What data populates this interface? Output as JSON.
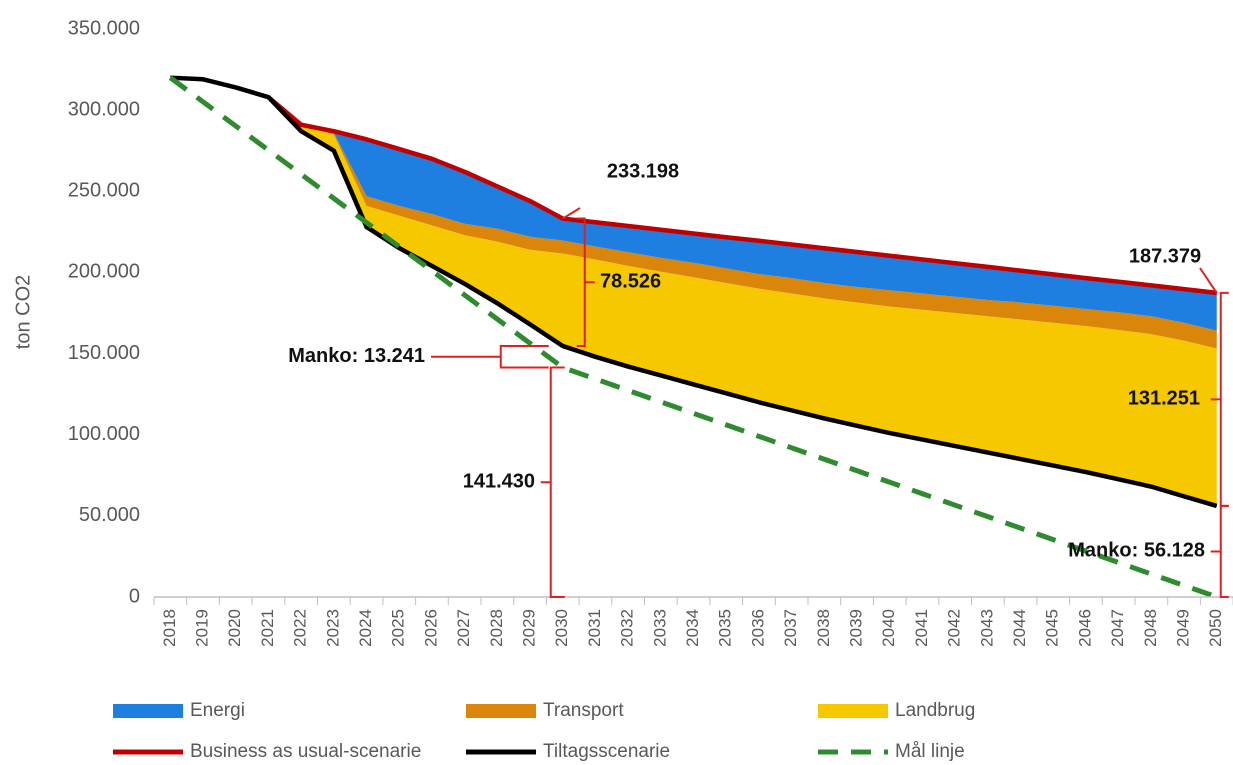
{
  "chart_data": {
    "type": "area",
    "y_label": "ton CO2",
    "categories": [
      2018,
      2019,
      2020,
      2021,
      2022,
      2023,
      2024,
      2025,
      2026,
      2027,
      2028,
      2029,
      2030,
      2031,
      2032,
      2033,
      2034,
      2035,
      2036,
      2037,
      2038,
      2039,
      2040,
      2041,
      2042,
      2043,
      2044,
      2045,
      2046,
      2047,
      2048,
      2049,
      2050
    ],
    "ylim": [
      0,
      350000
    ],
    "yticks": [
      {
        "value": 0,
        "label": "0"
      },
      {
        "value": 50000,
        "label": "50.000"
      },
      {
        "value": 100000,
        "label": "100.000"
      },
      {
        "value": 150000,
        "label": "150.000"
      },
      {
        "value": 200000,
        "label": "200.000"
      },
      {
        "value": 250000,
        "label": "250.000"
      },
      {
        "value": 300000,
        "label": "300.000"
      },
      {
        "value": 350000,
        "label": "350.000"
      }
    ],
    "series": [
      {
        "name": "Energi",
        "kind": "area",
        "color": "#1f7fe0",
        "values": [
          0,
          0,
          0,
          0,
          0,
          1000,
          35000,
          35000,
          34000,
          32000,
          26000,
          22000,
          13526,
          14900,
          16100,
          17300,
          18000,
          19200,
          20500,
          20700,
          21400,
          21600,
          21300,
          21000,
          20700,
          20400,
          19600,
          19300,
          19000,
          18800,
          19000,
          20700,
          23251
        ]
      },
      {
        "name": "Transport",
        "kind": "area",
        "color": "#d9860a",
        "values": [
          0,
          0,
          0,
          0,
          0,
          1000,
          6000,
          6000,
          7000,
          7000,
          8000,
          8000,
          8000,
          8000,
          8500,
          8500,
          9000,
          9000,
          9000,
          9500,
          9500,
          9500,
          10000,
          10000,
          10000,
          10000,
          10500,
          10500,
          10500,
          11000,
          11000,
          11000,
          11000
        ]
      },
      {
        "name": "Landbrug",
        "kind": "area",
        "color": "#f5c800",
        "values": [
          0,
          0,
          0,
          0,
          4000,
          10000,
          13000,
          20000,
          25000,
          30000,
          38000,
          46000,
          57000,
          60000,
          62000,
          64000,
          66000,
          68000,
          70000,
          72000,
          74000,
          76000,
          78000,
          80000,
          82000,
          84000,
          86000,
          88000,
          90000,
          92000,
          94000,
          96000,
          97000
        ]
      },
      {
        "name": "Business as usual-scenarie",
        "kind": "line",
        "color": "#c00000",
        "values": [
          null,
          null,
          null,
          308000,
          291000,
          287000,
          282000,
          276000,
          270000,
          262000,
          253000,
          244000,
          233198,
          230900,
          228600,
          226300,
          224000,
          221700,
          219500,
          217200,
          214900,
          212600,
          210300,
          208000,
          205700,
          203400,
          201100,
          198800,
          196500,
          194300,
          192000,
          189700,
          187379
        ]
      },
      {
        "name": "Tiltagsscenarie",
        "kind": "line",
        "color": "#000000",
        "stack_base": true,
        "values": [
          320000,
          319000,
          314000,
          308000,
          287000,
          275000,
          228000,
          215000,
          204000,
          193000,
          181000,
          168000,
          154672,
          148000,
          142000,
          136500,
          131000,
          125500,
          120000,
          115000,
          110000,
          105500,
          101000,
          97000,
          93000,
          89000,
          85000,
          81000,
          77000,
          72500,
          68000,
          62000,
          56128
        ]
      },
      {
        "name": "Mål linje",
        "kind": "line",
        "color": "#2e8b2e",
        "dashed": true,
        "values": [
          320000,
          305119,
          290238,
          275357,
          260477,
          245596,
          230715,
          215834,
          200953,
          186072,
          171192,
          156311,
          141430,
          134359,
          127287,
          120216,
          113144,
          106073,
          99001,
          91930,
          84858,
          77787,
          70715,
          63644,
          56572,
          49501,
          42429,
          35358,
          28286,
          21215,
          14143,
          7072,
          0
        ]
      }
    ],
    "annotations": [
      {
        "label": "233.198",
        "x": 2030,
        "value": 233198
      },
      {
        "label": "78.526",
        "x": 2030,
        "from": 154672,
        "to": 233198
      },
      {
        "label": "Manko: 13.241",
        "x": 2030,
        "from": 141430,
        "to": 154672
      },
      {
        "label": "141.430",
        "x": 2030,
        "from": 0,
        "to": 141430
      },
      {
        "label": "187.379",
        "x": 2050,
        "value": 187379
      },
      {
        "label": "131.251",
        "x": 2050,
        "from": 56128,
        "to": 187379
      },
      {
        "label": "Manko: 56.128",
        "x": 2050,
        "from": 0,
        "to": 56128
      }
    ],
    "annotation_color": "#e02020",
    "legend": "bottom"
  }
}
